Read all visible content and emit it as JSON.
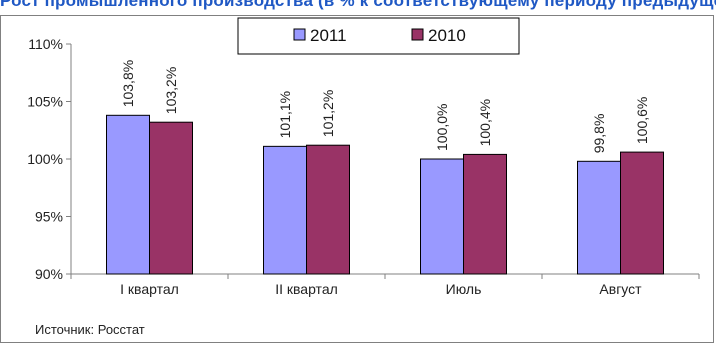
{
  "chart_data": {
    "type": "bar",
    "title": "Рост промышленного производства (в % к соответствующему периоду предыдущего года)",
    "categories": [
      "I квартал",
      "II квартал",
      "Июль",
      "Август"
    ],
    "series": [
      {
        "name": "2011",
        "values": [
          103.8,
          101.1,
          100.0,
          99.8
        ],
        "labels": [
          "103,8%",
          "101,1%",
          "100,0%",
          "99,8%"
        ],
        "color": "#9999ff"
      },
      {
        "name": "2010",
        "values": [
          103.2,
          101.2,
          100.4,
          100.6
        ],
        "labels": [
          "103,2%",
          "101,2%",
          "100,4%",
          "100,6%"
        ],
        "color": "#993366"
      }
    ],
    "ylim": [
      90,
      110
    ],
    "yticks": [
      90,
      95,
      100,
      105,
      110
    ],
    "ytick_labels": [
      "90%",
      "95%",
      "100%",
      "105%",
      "110%"
    ],
    "grid": false,
    "legend": "top-center",
    "source": "Источник: Росстат"
  }
}
